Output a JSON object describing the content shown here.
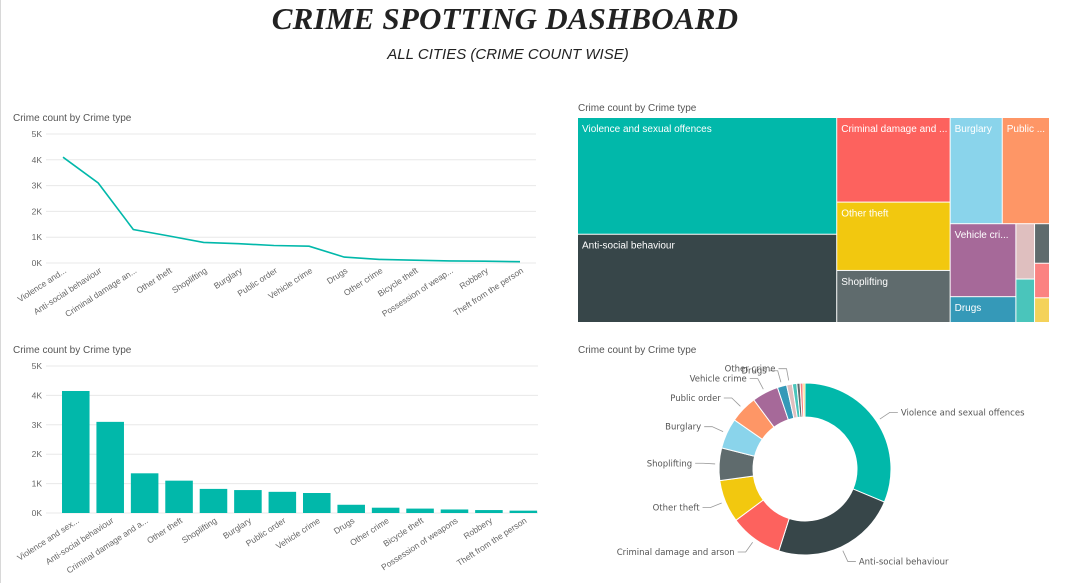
{
  "header": {
    "title": "CRIME SPOTTING DASHBOARD",
    "subtitle": "ALL CITIES (CRIME COUNT WISE)"
  },
  "colors": {
    "teal": "#01B8AA",
    "dark": "#374649",
    "coral": "#FD625E",
    "yellow": "#F2C80F",
    "grey": "#5F6B6D",
    "skyblue": "#8AD4EB",
    "orange": "#FE9666",
    "purple": "#A66999",
    "blue": "#3599B8",
    "pink": "#DFBFBF",
    "green": "#4AC5BB",
    "slate": "#5F6B6D",
    "red": "#FB8281",
    "gold": "#F4D25A",
    "grid": "#e8e8e8"
  },
  "chart_data": [
    {
      "type": "line",
      "panel_title": "Crime count by Crime type",
      "categories": [
        "Violence and...",
        "Anti-social behaviour",
        "Criminal damage an...",
        "Other theft",
        "Shoplifting",
        "Burglary",
        "Public order",
        "Vehicle crime",
        "Drugs",
        "Other crime",
        "Bicycle theft",
        "Possession of weap...",
        "Robbery",
        "Theft from the person"
      ],
      "values": [
        4100,
        3100,
        1300,
        1050,
        800,
        750,
        680,
        650,
        230,
        140,
        110,
        80,
        70,
        50
      ],
      "yticks": [
        "0K",
        "1K",
        "2K",
        "3K",
        "4K",
        "5K"
      ],
      "ylim": [
        0,
        5000
      ],
      "grid": true
    },
    {
      "type": "treemap",
      "panel_title": "Crime count by Crime type",
      "items": [
        {
          "label": "Violence and sexual offences",
          "value": 4100
        },
        {
          "label": "Anti-social behaviour",
          "value": 3100
        },
        {
          "label": "Criminal damage and ...",
          "value": 1300
        },
        {
          "label": "Other theft",
          "value": 1050
        },
        {
          "label": "Shoplifting",
          "value": 800
        },
        {
          "label": "Burglary",
          "value": 750
        },
        {
          "label": "Public ...",
          "value": 680
        },
        {
          "label": "Vehicle cri...",
          "value": 650
        },
        {
          "label": "Drugs",
          "value": 230
        },
        {
          "label": "",
          "value": 140
        },
        {
          "label": "",
          "value": 110
        },
        {
          "label": "",
          "value": 80
        },
        {
          "label": "",
          "value": 70
        },
        {
          "label": "",
          "value": 50
        }
      ]
    },
    {
      "type": "bar",
      "panel_title": "Crime count by Crime type",
      "categories": [
        "Violence and sex...",
        "Anti-social behaviour",
        "Criminal damage and a...",
        "Other theft",
        "Shoplifting",
        "Burglary",
        "Public order",
        "Vehicle crime",
        "Drugs",
        "Other crime",
        "Bicycle theft",
        "Possession of weapons",
        "Robbery",
        "Theft from the person"
      ],
      "values": [
        4150,
        3100,
        1350,
        1100,
        820,
        780,
        720,
        680,
        280,
        180,
        150,
        120,
        100,
        80
      ],
      "yticks": [
        "0K",
        "1K",
        "2K",
        "3K",
        "4K",
        "5K"
      ],
      "ylim": [
        0,
        5000
      ],
      "grid": true
    },
    {
      "type": "donut",
      "panel_title": "Crime count by Crime type",
      "slices": [
        {
          "label": "Violence and sexual offences",
          "value": 4100
        },
        {
          "label": "Anti-social behaviour",
          "value": 3100
        },
        {
          "label": "Criminal damage and arson",
          "value": 1300
        },
        {
          "label": "Other theft",
          "value": 1050
        },
        {
          "label": "Shoplifting",
          "value": 800
        },
        {
          "label": "Burglary",
          "value": 750
        },
        {
          "label": "Public order",
          "value": 680
        },
        {
          "label": "Vehicle crime",
          "value": 650
        },
        {
          "label": "Drugs",
          "value": 230
        },
        {
          "label": "Other crime",
          "value": 140
        },
        {
          "label": "",
          "value": 110
        },
        {
          "label": "",
          "value": 80
        },
        {
          "label": "",
          "value": 70
        },
        {
          "label": "",
          "value": 50
        }
      ]
    }
  ]
}
